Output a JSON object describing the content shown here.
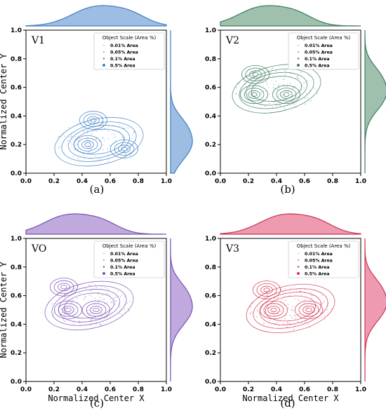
{
  "figure": {
    "y_axis_label": "Normalized Center Y",
    "x_axis_label": "Normalized Center X",
    "legend": {
      "title": "Object Scale (Area %)",
      "entries": [
        "0.01% Area",
        "0.05% Area",
        "0.1% Area",
        "0.5% Area"
      ]
    }
  },
  "chart_data": [
    {
      "type": "scatter",
      "panel_label": "V1",
      "caption": "(a)",
      "color": "#3e7fc4",
      "fill": "#9dbde3",
      "xlim": [
        0.0,
        1.0
      ],
      "ylim": [
        0.0,
        1.0
      ],
      "xticks": [
        "0.0",
        "0.2",
        "0.4",
        "0.6",
        "0.8",
        "1.0"
      ],
      "yticks": [
        "0.0",
        "0.2",
        "0.4",
        "0.6",
        "0.8",
        "1.0"
      ],
      "show_x_label": false,
      "show_y_label": true,
      "density_center": [
        0.52,
        0.22
      ],
      "hotspots": [
        [
          0.48,
          0.37
        ],
        [
          0.44,
          0.2
        ],
        [
          0.7,
          0.17
        ]
      ],
      "marginal_x_peak": 0.5,
      "marginal_y_peak": 0.2
    },
    {
      "type": "scatter",
      "panel_label": "V2",
      "caption": "(b)",
      "color": "#3f7a60",
      "fill": "#9ec0ad",
      "xlim": [
        0.0,
        1.0
      ],
      "ylim": [
        0.0,
        1.0
      ],
      "xticks": [
        "0.0",
        "0.2",
        "0.4",
        "0.6",
        "0.8",
        "1.0"
      ],
      "yticks": [
        "0.0",
        "0.2",
        "0.4",
        "0.6",
        "0.8",
        "1.0"
      ],
      "show_x_label": false,
      "show_y_label": false,
      "density_center": [
        0.4,
        0.59
      ],
      "hotspots": [
        [
          0.25,
          0.69
        ],
        [
          0.24,
          0.55
        ],
        [
          0.47,
          0.55
        ]
      ],
      "marginal_x_peak": 0.3,
      "marginal_y_peak": 0.55
    },
    {
      "type": "scatter",
      "panel_label": "VO",
      "caption": "(c)",
      "color": "#7a52b0",
      "fill": "#bfa9dd",
      "xlim": [
        0.0,
        1.0
      ],
      "ylim": [
        0.0,
        1.0
      ],
      "xticks": [
        "0.0",
        "0.2",
        "0.4",
        "0.6",
        "0.8",
        "1.0"
      ],
      "yticks": [
        "0.0",
        "0.2",
        "0.4",
        "0.6",
        "0.8",
        "1.0"
      ],
      "show_x_label": true,
      "show_y_label": true,
      "density_center": [
        0.45,
        0.53
      ],
      "hotspots": [
        [
          0.27,
          0.66
        ],
        [
          0.3,
          0.5
        ],
        [
          0.5,
          0.5
        ]
      ],
      "marginal_x_peak": 0.3,
      "marginal_y_peak": 0.5
    },
    {
      "type": "scatter",
      "panel_label": "V3",
      "caption": "(d)",
      "color": "#d03450",
      "fill": "#ee9ab0",
      "xlim": [
        0.0,
        1.0
      ],
      "ylim": [
        0.0,
        1.0
      ],
      "xticks": [
        "0.0",
        "0.2",
        "0.4",
        "0.6",
        "0.8",
        "1.0"
      ],
      "yticks": [
        "0.0",
        "0.2",
        "0.4",
        "0.6",
        "0.8",
        "1.0"
      ],
      "show_x_label": true,
      "show_y_label": false,
      "density_center": [
        0.5,
        0.51
      ],
      "hotspots": [
        [
          0.33,
          0.64
        ],
        [
          0.38,
          0.5
        ],
        [
          0.63,
          0.5
        ]
      ],
      "marginal_x_peak": 0.45,
      "marginal_y_peak": 0.53
    }
  ]
}
